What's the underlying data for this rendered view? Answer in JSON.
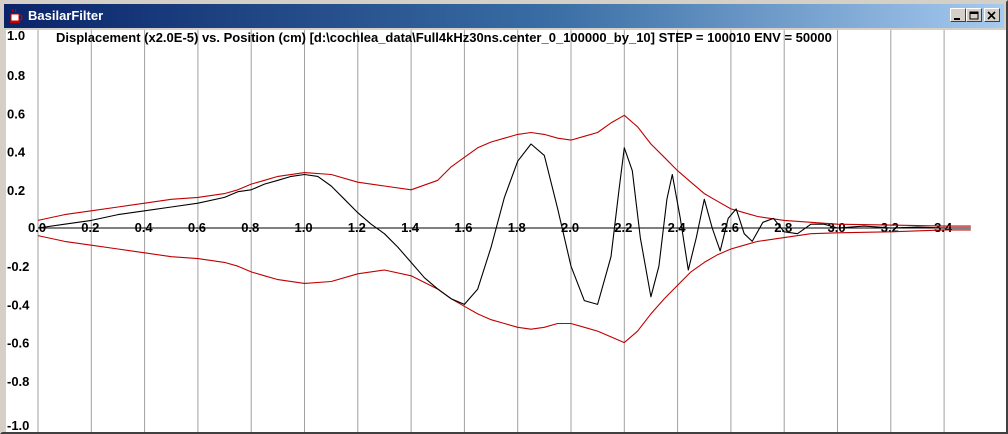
{
  "window": {
    "title": "BasilarFilter",
    "icon": "java-cup-icon",
    "controls": [
      "minimize-icon",
      "maximize-icon",
      "close-icon"
    ]
  },
  "chart_data": {
    "type": "line",
    "title": "Displacement (x2.0E-5) vs. Position (cm) [d:\\cochlea_data\\Full4kHz30ns.center_0_100000_by_10] STEP = 100010 ENV = 50000",
    "x_ticks": [
      "0.0",
      "0.2",
      "0.4",
      "0.6",
      "0.8",
      "1.0",
      "1.2",
      "1.4",
      "1.6",
      "1.8",
      "2.0",
      "2.2",
      "2.4",
      "2.6",
      "2.8",
      "3.0",
      "3.2",
      "3.4"
    ],
    "y_ticks": [
      "1.0",
      "0.8",
      "0.6",
      "0.4",
      "0.2",
      "-0.2",
      "-0.4",
      "-0.6",
      "-0.8",
      "-1.0"
    ],
    "xlim": [
      0.0,
      3.5
    ],
    "ylim": [
      -1.0,
      1.0
    ],
    "grid": "vertical",
    "series": [
      {
        "color": "#c00000",
        "points": [
          [
            0.0,
            0.04
          ],
          [
            0.1,
            0.07
          ],
          [
            0.2,
            0.09
          ],
          [
            0.3,
            0.11
          ],
          [
            0.4,
            0.13
          ],
          [
            0.5,
            0.15
          ],
          [
            0.6,
            0.16
          ],
          [
            0.7,
            0.18
          ],
          [
            0.75,
            0.2
          ],
          [
            0.8,
            0.23
          ],
          [
            0.85,
            0.25
          ],
          [
            0.9,
            0.27
          ],
          [
            1.0,
            0.29
          ],
          [
            1.1,
            0.28
          ],
          [
            1.2,
            0.24
          ],
          [
            1.3,
            0.22
          ],
          [
            1.4,
            0.2
          ],
          [
            1.5,
            0.25
          ],
          [
            1.55,
            0.32
          ],
          [
            1.6,
            0.37
          ],
          [
            1.65,
            0.42
          ],
          [
            1.7,
            0.45
          ],
          [
            1.75,
            0.47
          ],
          [
            1.8,
            0.49
          ],
          [
            1.85,
            0.5
          ],
          [
            1.9,
            0.49
          ],
          [
            1.95,
            0.47
          ],
          [
            2.0,
            0.46
          ],
          [
            2.05,
            0.48
          ],
          [
            2.1,
            0.5
          ],
          [
            2.15,
            0.55
          ],
          [
            2.2,
            0.59
          ],
          [
            2.25,
            0.53
          ],
          [
            2.3,
            0.44
          ],
          [
            2.35,
            0.37
          ],
          [
            2.4,
            0.3
          ],
          [
            2.45,
            0.24
          ],
          [
            2.5,
            0.18
          ],
          [
            2.55,
            0.14
          ],
          [
            2.6,
            0.1
          ],
          [
            2.65,
            0.08
          ],
          [
            2.7,
            0.06
          ],
          [
            2.8,
            0.04
          ],
          [
            2.9,
            0.03
          ],
          [
            3.0,
            0.02
          ],
          [
            3.2,
            0.015
          ],
          [
            3.4,
            0.01
          ],
          [
            3.5,
            0.01
          ]
        ]
      },
      {
        "color": "#c00000",
        "points": [
          [
            0.0,
            -0.04
          ],
          [
            0.1,
            -0.07
          ],
          [
            0.2,
            -0.09
          ],
          [
            0.3,
            -0.11
          ],
          [
            0.4,
            -0.13
          ],
          [
            0.5,
            -0.15
          ],
          [
            0.6,
            -0.16
          ],
          [
            0.7,
            -0.18
          ],
          [
            0.75,
            -0.2
          ],
          [
            0.8,
            -0.23
          ],
          [
            0.85,
            -0.25
          ],
          [
            0.9,
            -0.27
          ],
          [
            1.0,
            -0.29
          ],
          [
            1.1,
            -0.28
          ],
          [
            1.2,
            -0.24
          ],
          [
            1.3,
            -0.22
          ],
          [
            1.4,
            -0.25
          ],
          [
            1.5,
            -0.32
          ],
          [
            1.55,
            -0.37
          ],
          [
            1.6,
            -0.41
          ],
          [
            1.65,
            -0.45
          ],
          [
            1.7,
            -0.48
          ],
          [
            1.75,
            -0.5
          ],
          [
            1.8,
            -0.52
          ],
          [
            1.85,
            -0.53
          ],
          [
            1.9,
            -0.52
          ],
          [
            1.95,
            -0.5
          ],
          [
            2.0,
            -0.5
          ],
          [
            2.05,
            -0.52
          ],
          [
            2.1,
            -0.54
          ],
          [
            2.15,
            -0.57
          ],
          [
            2.2,
            -0.6
          ],
          [
            2.25,
            -0.54
          ],
          [
            2.3,
            -0.45
          ],
          [
            2.35,
            -0.37
          ],
          [
            2.4,
            -0.3
          ],
          [
            2.45,
            -0.23
          ],
          [
            2.5,
            -0.18
          ],
          [
            2.55,
            -0.14
          ],
          [
            2.6,
            -0.11
          ],
          [
            2.65,
            -0.09
          ],
          [
            2.7,
            -0.07
          ],
          [
            2.8,
            -0.05
          ],
          [
            2.9,
            -0.03
          ],
          [
            3.0,
            -0.025
          ],
          [
            3.2,
            -0.02
          ],
          [
            3.4,
            -0.01
          ],
          [
            3.5,
            -0.01
          ]
        ]
      },
      {
        "color": "#000000",
        "points": [
          [
            0.0,
            0.0
          ],
          [
            0.1,
            0.02
          ],
          [
            0.2,
            0.04
          ],
          [
            0.3,
            0.07
          ],
          [
            0.4,
            0.09
          ],
          [
            0.5,
            0.11
          ],
          [
            0.6,
            0.13
          ],
          [
            0.7,
            0.16
          ],
          [
            0.75,
            0.19
          ],
          [
            0.8,
            0.2
          ],
          [
            0.85,
            0.23
          ],
          [
            0.9,
            0.25
          ],
          [
            0.95,
            0.27
          ],
          [
            1.0,
            0.28
          ],
          [
            1.05,
            0.27
          ],
          [
            1.1,
            0.22
          ],
          [
            1.15,
            0.15
          ],
          [
            1.2,
            0.08
          ],
          [
            1.25,
            0.02
          ],
          [
            1.3,
            -0.03
          ],
          [
            1.35,
            -0.1
          ],
          [
            1.4,
            -0.18
          ],
          [
            1.45,
            -0.26
          ],
          [
            1.5,
            -0.32
          ],
          [
            1.55,
            -0.37
          ],
          [
            1.6,
            -0.4
          ],
          [
            1.65,
            -0.32
          ],
          [
            1.7,
            -0.1
          ],
          [
            1.75,
            0.16
          ],
          [
            1.8,
            0.35
          ],
          [
            1.85,
            0.44
          ],
          [
            1.9,
            0.38
          ],
          [
            1.95,
            0.1
          ],
          [
            2.0,
            -0.2
          ],
          [
            2.05,
            -0.38
          ],
          [
            2.1,
            -0.4
          ],
          [
            2.15,
            -0.15
          ],
          [
            2.18,
            0.2
          ],
          [
            2.2,
            0.42
          ],
          [
            2.23,
            0.3
          ],
          [
            2.26,
            -0.05
          ],
          [
            2.3,
            -0.36
          ],
          [
            2.33,
            -0.2
          ],
          [
            2.36,
            0.15
          ],
          [
            2.38,
            0.28
          ],
          [
            2.41,
            0.05
          ],
          [
            2.44,
            -0.22
          ],
          [
            2.47,
            -0.05
          ],
          [
            2.5,
            0.15
          ],
          [
            2.53,
            0.0
          ],
          [
            2.56,
            -0.12
          ],
          [
            2.59,
            0.05
          ],
          [
            2.62,
            0.1
          ],
          [
            2.65,
            -0.03
          ],
          [
            2.68,
            -0.07
          ],
          [
            2.72,
            0.03
          ],
          [
            2.76,
            0.05
          ],
          [
            2.8,
            -0.02
          ],
          [
            2.85,
            -0.03
          ],
          [
            2.9,
            0.02
          ],
          [
            2.95,
            0.02
          ],
          [
            3.0,
            0.0
          ],
          [
            3.1,
            0.01
          ],
          [
            3.2,
            0.0
          ],
          [
            3.3,
            0.005
          ],
          [
            3.4,
            0.0
          ],
          [
            3.5,
            0.0
          ]
        ]
      }
    ]
  }
}
